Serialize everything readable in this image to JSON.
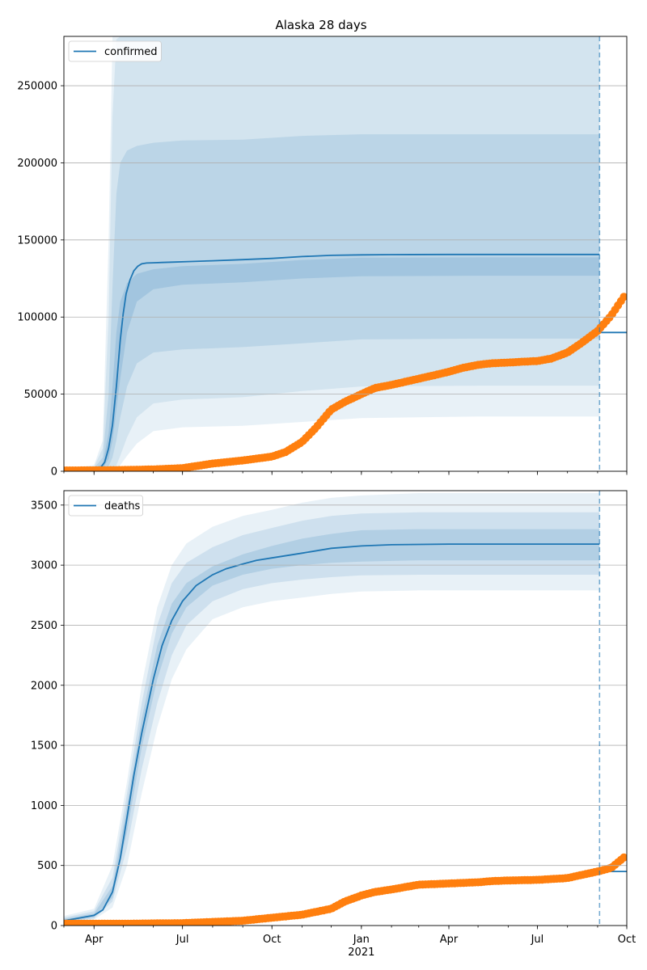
{
  "title": "Alaska 28 days",
  "x_axis": {
    "range": [
      "2020-03-01",
      "2021-10-01"
    ],
    "ticks": [
      {
        "date": "2020-04-01",
        "label": "Apr"
      },
      {
        "date": "2020-07-01",
        "label": "Jul"
      },
      {
        "date": "2020-10-01",
        "label": "Oct"
      },
      {
        "date": "2021-01-01",
        "label": "Jan"
      },
      {
        "date": "2021-04-01",
        "label": "Apr"
      },
      {
        "date": "2021-07-01",
        "label": "Jul"
      },
      {
        "date": "2021-10-01",
        "label": "Oct"
      }
    ],
    "year_label": "2021",
    "year_label_date": "2021-01-01"
  },
  "forecast_date": "2021-09-03",
  "colors": {
    "model": "#1f77b4",
    "observed": "#ff7f0e",
    "band": "#1f77b4",
    "grid": "#b0b0b0"
  },
  "chart_data": [
    {
      "type": "line",
      "title": "Alaska 28 days",
      "legend": "top-left",
      "grid": "horizontal",
      "ylim": [
        0,
        282000
      ],
      "yticks": [
        0,
        50000,
        100000,
        150000,
        200000,
        250000
      ],
      "series": [
        {
          "name": "confirmed",
          "kind": "model-median",
          "x": [
            "2020-03-01",
            "2020-03-20",
            "2020-04-01",
            "2020-04-08",
            "2020-04-12",
            "2020-04-16",
            "2020-04-20",
            "2020-04-24",
            "2020-04-28",
            "2020-05-01",
            "2020-05-04",
            "2020-05-08",
            "2020-05-12",
            "2020-05-16",
            "2020-05-20",
            "2020-05-25",
            "2020-06-01",
            "2020-06-10",
            "2020-06-20",
            "2020-07-10",
            "2020-08-01",
            "2020-09-01",
            "2020-10-01",
            "2020-11-01",
            "2020-12-01",
            "2021-01-01",
            "2021-02-01",
            "2021-04-01",
            "2021-06-01",
            "2021-09-03"
          ],
          "y": [
            500,
            600,
            900,
            2500,
            6000,
            15000,
            30000,
            55000,
            85000,
            102000,
            115000,
            124000,
            130000,
            133000,
            134500,
            135000,
            135200,
            135400,
            135600,
            136000,
            136500,
            137200,
            138000,
            139200,
            140000,
            140300,
            140500,
            140600,
            140600,
            140600
          ]
        },
        {
          "name": "",
          "kind": "projection",
          "x": [
            "2021-09-03",
            "2021-10-01"
          ],
          "y": [
            90000,
            90000
          ]
        },
        {
          "name": "",
          "kind": "observed",
          "x": [
            "2020-03-01",
            "2020-04-01",
            "2020-05-01",
            "2020-06-01",
            "2020-07-01",
            "2020-08-01",
            "2020-09-01",
            "2020-10-01",
            "2020-10-15",
            "2020-11-01",
            "2020-11-15",
            "2020-12-01",
            "2020-12-15",
            "2021-01-01",
            "2021-01-15",
            "2021-02-01",
            "2021-02-15",
            "2021-03-01",
            "2021-03-15",
            "2021-04-01",
            "2021-04-15",
            "2021-05-01",
            "2021-05-15",
            "2021-06-01",
            "2021-06-15",
            "2021-07-01",
            "2021-07-15",
            "2021-08-01",
            "2021-08-15",
            "2021-09-01",
            "2021-09-15",
            "2021-09-30"
          ],
          "y": [
            500,
            600,
            800,
            1200,
            2000,
            5000,
            7000,
            9500,
            12500,
            19000,
            28000,
            40000,
            45000,
            50000,
            54000,
            56000,
            58000,
            60000,
            62000,
            64500,
            67000,
            69000,
            70000,
            70500,
            71000,
            71500,
            73000,
            77000,
            83000,
            91000,
            101000,
            115000
          ]
        }
      ],
      "bands": [
        {
          "level": "outer",
          "x": [
            "2020-03-01",
            "2020-04-01",
            "2020-04-10",
            "2020-04-16",
            "2020-04-20",
            "2020-04-24",
            "2020-04-28",
            "2020-05-05",
            "2020-05-15",
            "2020-06-01",
            "2020-07-01",
            "2020-09-01",
            "2020-11-01",
            "2021-01-01",
            "2021-05-01",
            "2021-09-03"
          ],
          "upper": [
            1500,
            4000,
            20000,
            150000,
            300000,
            300000,
            300000,
            300000,
            300000,
            300000,
            300000,
            300000,
            300000,
            300000,
            300000,
            300000
          ],
          "lower": [
            0,
            0,
            0,
            0,
            300,
            1500,
            4000,
            10000,
            18000,
            26000,
            28500,
            29500,
            32000,
            34500,
            35500,
            35500
          ]
        },
        {
          "level": "mid-outer",
          "x": [
            "2020-03-01",
            "2020-04-01",
            "2020-04-10",
            "2020-04-16",
            "2020-04-20",
            "2020-04-24",
            "2020-04-28",
            "2020-05-05",
            "2020-05-15",
            "2020-06-01",
            "2020-07-01",
            "2020-09-01",
            "2020-11-01",
            "2021-01-01",
            "2021-05-01",
            "2021-09-03"
          ],
          "upper": [
            1200,
            3000,
            15000,
            100000,
            230000,
            280000,
            300000,
            300000,
            300000,
            300000,
            300000,
            300000,
            300000,
            300000,
            300000,
            300000
          ],
          "lower": [
            0,
            0,
            0,
            200,
            1000,
            4000,
            10000,
            22000,
            35000,
            44000,
            46500,
            48000,
            52000,
            55000,
            55500,
            55500
          ]
        },
        {
          "level": "mid-inner",
          "x": [
            "2020-03-01",
            "2020-04-01",
            "2020-04-10",
            "2020-04-16",
            "2020-04-20",
            "2020-04-24",
            "2020-04-28",
            "2020-05-05",
            "2020-05-15",
            "2020-06-01",
            "2020-07-01",
            "2020-09-01",
            "2020-11-01",
            "2021-01-01",
            "2021-05-01",
            "2021-09-03"
          ],
          "upper": [
            900,
            2000,
            9000,
            50000,
            120000,
            180000,
            200000,
            208000,
            211000,
            213000,
            214500,
            215000,
            217500,
            218500,
            218500,
            218500
          ],
          "lower": [
            0,
            200,
            800,
            3000,
            9000,
            20000,
            35000,
            55000,
            70000,
            77000,
            79000,
            80500,
            83000,
            85500,
            86000,
            86000
          ]
        },
        {
          "level": "inner",
          "x": [
            "2020-03-01",
            "2020-04-01",
            "2020-04-10",
            "2020-04-16",
            "2020-04-20",
            "2020-04-24",
            "2020-04-28",
            "2020-05-05",
            "2020-05-15",
            "2020-06-01",
            "2020-07-01",
            "2020-09-01",
            "2020-11-01",
            "2021-01-01",
            "2021-05-01",
            "2021-09-03"
          ],
          "upper": [
            700,
            1500,
            5000,
            25000,
            55000,
            90000,
            110000,
            122000,
            128000,
            131000,
            133000,
            134500,
            137000,
            138500,
            138700,
            138700
          ],
          "lower": [
            100,
            500,
            2000,
            8000,
            20000,
            40000,
            60000,
            90000,
            110000,
            118000,
            121000,
            122500,
            125000,
            126500,
            126800,
            126800
          ]
        }
      ]
    },
    {
      "type": "line",
      "title": "",
      "legend": "top-left",
      "grid": "horizontal",
      "ylim": [
        0,
        3620
      ],
      "yticks": [
        0,
        500,
        1000,
        1500,
        2000,
        2500,
        3000,
        3500
      ],
      "series": [
        {
          "name": "deaths",
          "kind": "model-median",
          "x": [
            "2020-03-01",
            "2020-03-15",
            "2020-04-01",
            "2020-04-10",
            "2020-04-20",
            "2020-04-28",
            "2020-05-05",
            "2020-05-12",
            "2020-05-20",
            "2020-06-01",
            "2020-06-10",
            "2020-06-20",
            "2020-07-01",
            "2020-07-15",
            "2020-08-01",
            "2020-08-15",
            "2020-09-01",
            "2020-09-15",
            "2020-10-01",
            "2020-11-01",
            "2020-12-01",
            "2021-01-01",
            "2021-02-01",
            "2021-04-01",
            "2021-06-01",
            "2021-09-03"
          ],
          "y": [
            40,
            60,
            85,
            130,
            280,
            560,
            900,
            1250,
            1600,
            2050,
            2330,
            2540,
            2700,
            2830,
            2920,
            2970,
            3010,
            3040,
            3060,
            3100,
            3140,
            3160,
            3170,
            3175,
            3175,
            3175
          ]
        },
        {
          "name": "",
          "kind": "projection",
          "x": [
            "2021-09-03",
            "2021-10-01"
          ],
          "y": [
            450,
            450
          ]
        },
        {
          "name": "",
          "kind": "observed",
          "x": [
            "2020-03-01",
            "2020-05-01",
            "2020-07-01",
            "2020-08-01",
            "2020-09-01",
            "2020-10-01",
            "2020-11-01",
            "2020-12-01",
            "2020-12-15",
            "2021-01-01",
            "2021-01-15",
            "2021-02-01",
            "2021-02-15",
            "2021-03-01",
            "2021-04-01",
            "2021-05-01",
            "2021-05-15",
            "2021-06-01",
            "2021-07-01",
            "2021-08-01",
            "2021-08-15",
            "2021-09-01",
            "2021-09-15",
            "2021-09-30"
          ],
          "y": [
            15,
            15,
            20,
            30,
            40,
            65,
            90,
            140,
            200,
            250,
            280,
            300,
            320,
            340,
            350,
            360,
            370,
            375,
            380,
            395,
            420,
            450,
            480,
            580
          ]
        }
      ],
      "bands": [
        {
          "level": "outer",
          "x": [
            "2020-03-01",
            "2020-04-01",
            "2020-04-20",
            "2020-05-05",
            "2020-05-20",
            "2020-06-05",
            "2020-06-20",
            "2020-07-05",
            "2020-08-01",
            "2020-09-01",
            "2020-10-01",
            "2020-11-01",
            "2020-12-01",
            "2021-01-01",
            "2021-03-01",
            "2021-09-03"
          ],
          "upper": [
            80,
            140,
            500,
            1200,
            2000,
            2650,
            3000,
            3180,
            3320,
            3410,
            3460,
            3520,
            3560,
            3580,
            3600,
            3600
          ],
          "lower": [
            20,
            50,
            150,
            500,
            1100,
            1650,
            2050,
            2300,
            2550,
            2650,
            2700,
            2730,
            2760,
            2780,
            2790,
            2790
          ]
        },
        {
          "level": "mid",
          "x": [
            "2020-03-01",
            "2020-04-01",
            "2020-04-20",
            "2020-05-05",
            "2020-05-20",
            "2020-06-05",
            "2020-06-20",
            "2020-07-05",
            "2020-08-01",
            "2020-09-01",
            "2020-10-01",
            "2020-11-01",
            "2020-12-01",
            "2021-01-01",
            "2021-03-01",
            "2021-09-03"
          ],
          "upper": [
            65,
            120,
            400,
            1100,
            1850,
            2500,
            2850,
            3020,
            3150,
            3250,
            3310,
            3370,
            3410,
            3430,
            3440,
            3440
          ],
          "lower": [
            25,
            60,
            200,
            650,
            1300,
            1850,
            2250,
            2500,
            2700,
            2800,
            2850,
            2880,
            2900,
            2915,
            2920,
            2920
          ]
        },
        {
          "level": "inner",
          "x": [
            "2020-03-01",
            "2020-04-01",
            "2020-04-20",
            "2020-05-05",
            "2020-05-20",
            "2020-06-05",
            "2020-06-20",
            "2020-07-05",
            "2020-08-01",
            "2020-09-01",
            "2020-10-01",
            "2020-11-01",
            "2020-12-01",
            "2021-01-01",
            "2021-03-01",
            "2021-09-03"
          ],
          "upper": [
            55,
            100,
            330,
            1000,
            1720,
            2330,
            2680,
            2850,
            2990,
            3090,
            3160,
            3220,
            3260,
            3290,
            3300,
            3300
          ],
          "lower": [
            30,
            70,
            230,
            780,
            1480,
            2050,
            2430,
            2650,
            2830,
            2920,
            2970,
            3000,
            3020,
            3030,
            3040,
            3040
          ]
        }
      ]
    }
  ]
}
